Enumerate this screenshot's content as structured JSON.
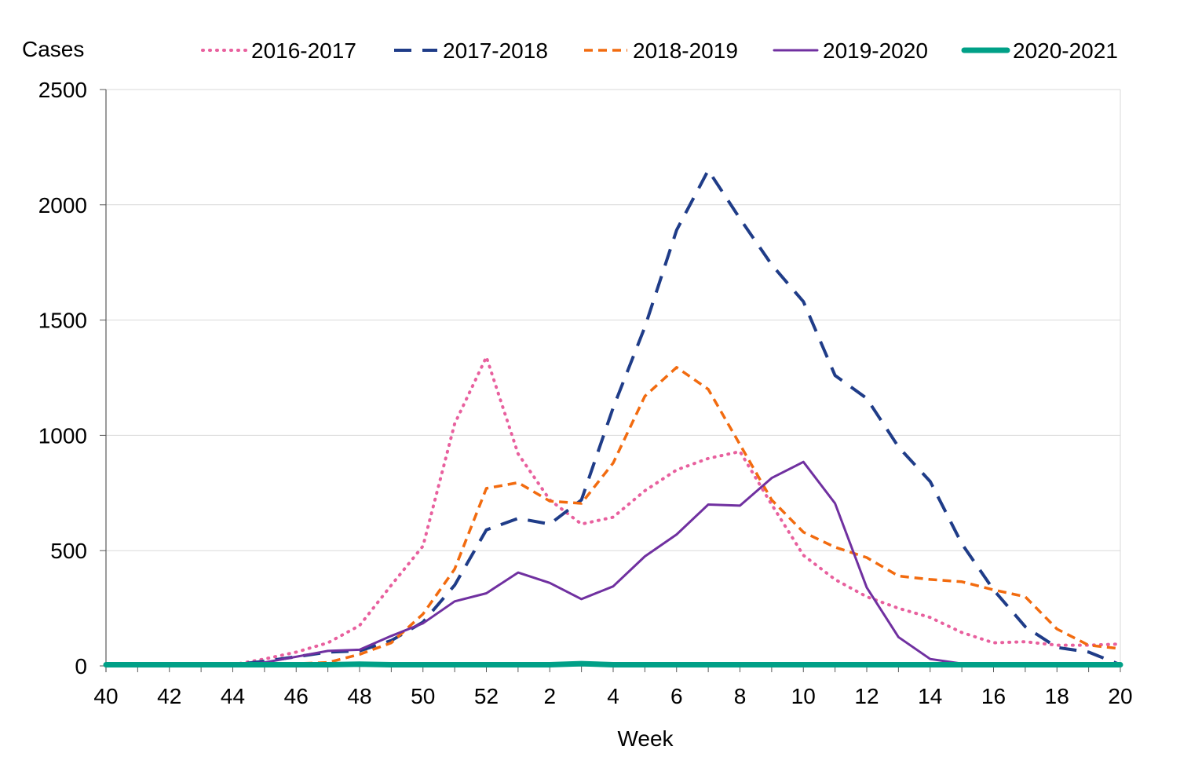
{
  "chart_data": {
    "type": "line",
    "title": "",
    "xlabel": "Week",
    "ylabel": "Cases",
    "ylim": [
      0,
      2500
    ],
    "yticks": [
      0,
      500,
      1000,
      1500,
      2000,
      2500
    ],
    "grid": "horizontal",
    "legend_position": "top",
    "x": [
      40,
      41,
      42,
      43,
      44,
      45,
      46,
      47,
      48,
      49,
      50,
      51,
      52,
      1,
      2,
      3,
      4,
      5,
      6,
      7,
      8,
      9,
      10,
      11,
      12,
      13,
      14,
      15,
      16,
      17,
      18,
      19,
      20
    ],
    "x_tick_labels": [
      "40",
      "",
      "42",
      "",
      "44",
      "",
      "46",
      "",
      "48",
      "",
      "50",
      "",
      "52",
      "",
      "2",
      "",
      "4",
      "",
      "6",
      "",
      "8",
      "",
      "10",
      "",
      "12",
      "",
      "14",
      "",
      "16",
      "",
      "18",
      "",
      "20"
    ],
    "series": [
      {
        "name": "2016-2017",
        "color": "#e8609e",
        "style": "dotted",
        "values": [
          5,
          5,
          5,
          5,
          5,
          30,
          60,
          100,
          175,
          350,
          520,
          1050,
          1340,
          920,
          720,
          615,
          645,
          760,
          850,
          900,
          930,
          700,
          480,
          375,
          300,
          250,
          210,
          145,
          100,
          105,
          90,
          90,
          95
        ]
      },
      {
        "name": "2017-2018",
        "color": "#1f3c88",
        "style": "long-dash",
        "values": [
          5,
          5,
          5,
          5,
          5,
          20,
          40,
          60,
          65,
          110,
          190,
          350,
          590,
          640,
          615,
          720,
          1120,
          1470,
          1890,
          2150,
          1940,
          1740,
          1580,
          1260,
          1160,
          950,
          800,
          530,
          330,
          170,
          80,
          60,
          5
        ]
      },
      {
        "name": "2018-2019",
        "color": "#f26b0f",
        "style": "short-dash",
        "values": [
          5,
          5,
          5,
          5,
          5,
          10,
          10,
          15,
          50,
          100,
          225,
          420,
          770,
          795,
          715,
          705,
          880,
          1170,
          1295,
          1200,
          960,
          720,
          580,
          515,
          470,
          390,
          375,
          365,
          330,
          300,
          160,
          90,
          75
        ]
      },
      {
        "name": "2019-2020",
        "color": "#7030a0",
        "style": "solid",
        "values": [
          5,
          5,
          5,
          5,
          5,
          15,
          40,
          65,
          70,
          130,
          185,
          280,
          315,
          405,
          360,
          290,
          345,
          475,
          570,
          700,
          695,
          815,
          885,
          705,
          340,
          125,
          30,
          10,
          5,
          5,
          5,
          5,
          5
        ]
      },
      {
        "name": "2020-2021",
        "color": "#00a087",
        "style": "thick",
        "values": [
          5,
          5,
          5,
          5,
          5,
          5,
          5,
          5,
          8,
          5,
          5,
          5,
          5,
          5,
          5,
          10,
          5,
          5,
          5,
          5,
          5,
          5,
          5,
          5,
          5,
          5,
          5,
          5,
          5,
          5,
          5,
          5,
          5
        ]
      }
    ]
  }
}
